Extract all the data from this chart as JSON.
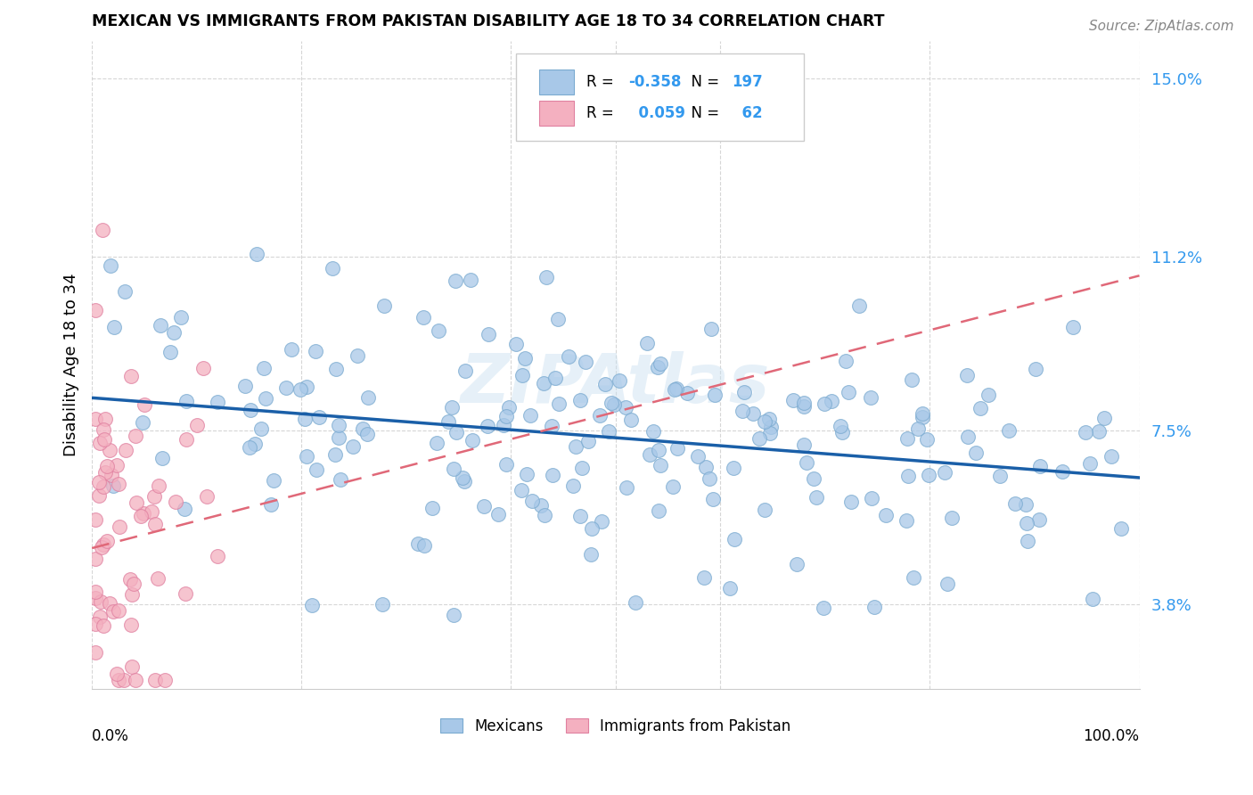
{
  "title": "MEXICAN VS IMMIGRANTS FROM PAKISTAN DISABILITY AGE 18 TO 34 CORRELATION CHART",
  "source": "Source: ZipAtlas.com",
  "ylabel": "Disability Age 18 to 34",
  "yticks": [
    3.8,
    7.5,
    11.2,
    15.0
  ],
  "ytick_labels": [
    "3.8%",
    "7.5%",
    "11.2%",
    "15.0%"
  ],
  "xlim": [
    0.0,
    1.0
  ],
  "ylim": [
    0.02,
    0.158
  ],
  "blue_R": -0.358,
  "blue_N": 197,
  "pink_R": 0.059,
  "pink_N": 62,
  "blue_color": "#a8c8e8",
  "blue_edge_color": "#7aaad0",
  "pink_color": "#f4b0c0",
  "pink_edge_color": "#e080a0",
  "blue_line_color": "#1a5fa8",
  "pink_line_color": "#e06878",
  "legend_label_blue": "Mexicans",
  "legend_label_pink": "Immigrants from Pakistan",
  "watermark": "ZIPAtlas",
  "blue_trendline_x": [
    0.0,
    1.0
  ],
  "blue_trendline_y": [
    0.082,
    0.065
  ],
  "pink_trendline_x": [
    0.0,
    1.0
  ],
  "pink_trendline_y": [
    0.05,
    0.108
  ]
}
